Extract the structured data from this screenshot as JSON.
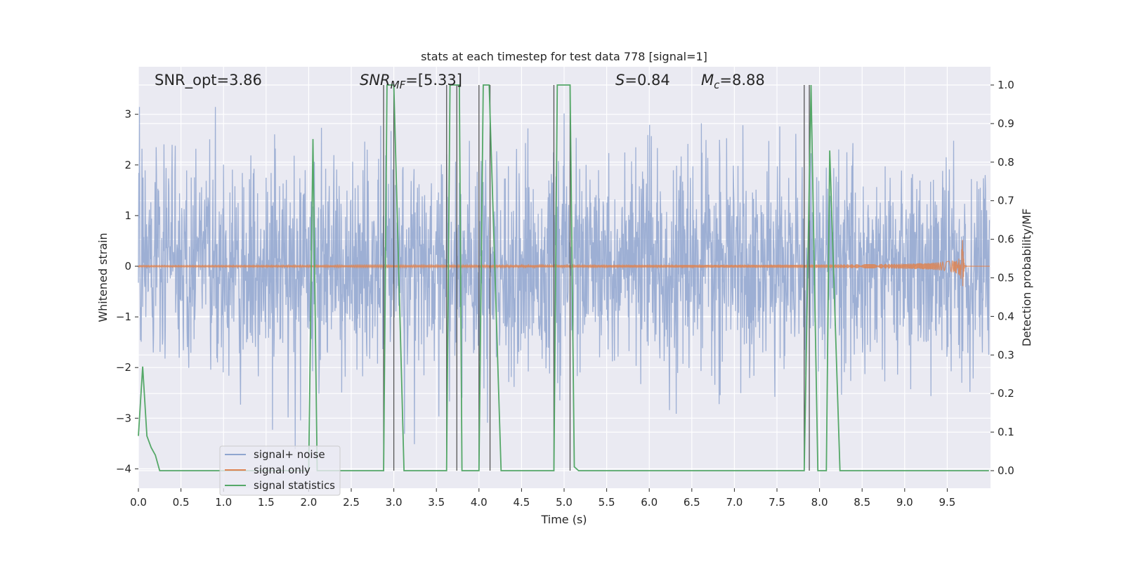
{
  "chart_data": {
    "type": "line",
    "title": "stats at each timestep for test data 778 [signal=1]",
    "xlabel": "Time (s)",
    "ylabel_left": "Whitened strain",
    "ylabel_right": "Detection probability/MF",
    "xlim": [
      0.0,
      10.0
    ],
    "ylim_left": [
      -4.4,
      3.9
    ],
    "ylim_right": [
      -0.05,
      1.05
    ],
    "x_ticks": [
      "0.0",
      "0.5",
      "1.0",
      "1.5",
      "2.0",
      "2.5",
      "3.0",
      "3.5",
      "4.0",
      "4.5",
      "5.0",
      "5.5",
      "6.0",
      "6.5",
      "7.0",
      "7.5",
      "8.0",
      "8.5",
      "9.0",
      "9.5"
    ],
    "y_ticks_left": [
      "3",
      "2",
      "1",
      "0",
      "−1",
      "−2",
      "−3",
      "−4"
    ],
    "y_ticks_right": [
      "1.0",
      "0.9",
      "0.8",
      "0.7",
      "0.6",
      "0.5",
      "0.4",
      "0.3",
      "0.2",
      "0.1",
      "0.0"
    ],
    "grid": true,
    "legend_position": "lower-left",
    "annotations": {
      "snr_opt": "SNR_opt=3.86",
      "snr_mf_main": "SNR",
      "snr_mf_sub": "MF",
      "snr_mf_rest": "=[5.33]",
      "s_main": "S",
      "s_rest": "=0.84",
      "mc_main": "M",
      "mc_sub": "c",
      "mc_rest": "=8.88"
    },
    "series": [
      {
        "name": "signal+ noise",
        "color": "#8fa5cf",
        "kind": "noise",
        "std": 1.0,
        "peak_max": 3.6,
        "peak_min": -4.1
      },
      {
        "name": "signal only",
        "color": "#dd8452",
        "kind": "chirp",
        "merger_time": 9.68,
        "peak_amplitude": 0.52
      },
      {
        "name": "signal statistics",
        "color": "#55a868",
        "axis": "right",
        "x": [
          0.0,
          0.05,
          0.1,
          0.15,
          0.2,
          0.25,
          2.0,
          2.05,
          2.1,
          2.15,
          2.88,
          2.92,
          3.0,
          3.12,
          3.62,
          3.66,
          3.77,
          3.8,
          4.0,
          4.05,
          4.12,
          4.26,
          4.88,
          4.92,
          5.07,
          5.12,
          5.17,
          7.82,
          7.86,
          7.9,
          7.98,
          8.02,
          8.08,
          8.12,
          8.24,
          9.99
        ],
        "y": [
          0.09,
          0.27,
          0.09,
          0.06,
          0.04,
          0.0,
          0.0,
          0.86,
          0.0,
          0.0,
          0.0,
          1.0,
          1.0,
          0.0,
          0.0,
          1.0,
          1.0,
          0.0,
          0.0,
          1.0,
          1.0,
          0.0,
          0.0,
          1.0,
          1.0,
          0.01,
          0.0,
          0.0,
          0.5,
          1.0,
          0.0,
          0.0,
          0.0,
          0.83,
          0.0,
          0.0
        ]
      }
    ],
    "vlines": [
      2.88,
      3.0,
      3.62,
      3.74,
      4.0,
      4.13,
      4.88,
      5.07,
      7.82,
      7.88
    ],
    "vline_color": "#555555"
  }
}
